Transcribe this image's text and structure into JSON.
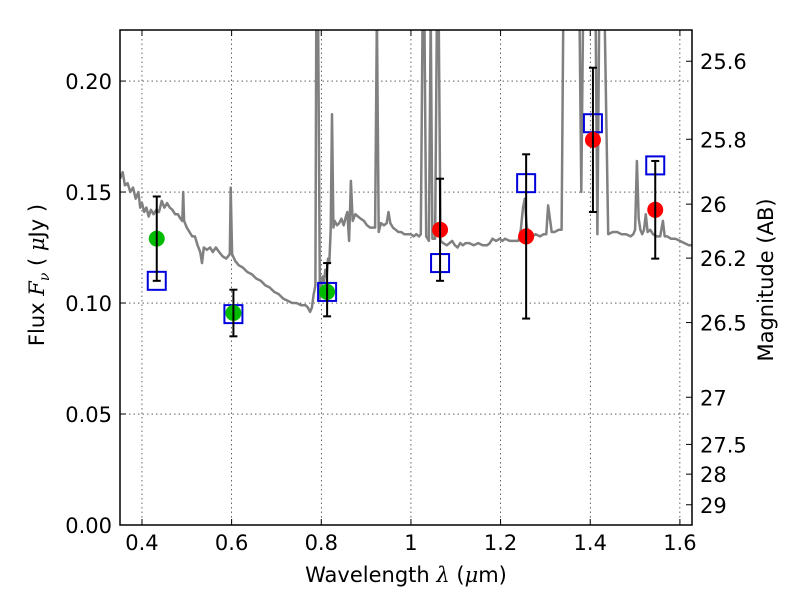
{
  "chart_data": {
    "type": "scatter",
    "title": "",
    "xlabel": "Wavelength  λ (μm)",
    "ylabel": "Flux  Fν  ( μJy )",
    "ylabel_right": "Magnitude (AB)",
    "xlim": [
      0.351,
      1.627
    ],
    "ylim": [
      0.0,
      0.223
    ],
    "grid": true,
    "x_ticks": [
      0.4,
      0.6,
      0.8,
      1.0,
      1.2,
      1.4,
      1.6
    ],
    "x_tick_labels": [
      "0.4",
      "0.6",
      "0.8",
      "1",
      "1.2",
      "1.4",
      "1.6"
    ],
    "y_ticks": [
      0.0,
      0.05,
      0.1,
      0.15,
      0.2
    ],
    "y_tick_labels": [
      "0.00",
      "0.05",
      "0.10",
      "0.15",
      "0.20"
    ],
    "right_axis": {
      "type": "AB magnitude",
      "zeropoint": 23.9,
      "ticks": [
        25.6,
        25.8,
        26,
        26.2,
        26.5,
        27,
        27.5,
        28,
        29
      ],
      "tick_labels": [
        "25.6",
        "25.8",
        "26",
        "26.2",
        "26.5",
        "27",
        "27.5",
        "28",
        "29"
      ]
    },
    "colors": {
      "spectrum": "#808080",
      "green_points": "#00bb00",
      "red_points": "#ff0000",
      "model_squares": "#0000dd",
      "errorbars": "#000000"
    },
    "observed": [
      {
        "x": 0.433,
        "y": 0.129,
        "yerr_low": 0.11,
        "yerr_high": 0.148,
        "color": "green"
      },
      {
        "x": 0.604,
        "y": 0.0955,
        "yerr_low": 0.085,
        "yerr_high": 0.106,
        "color": "green"
      },
      {
        "x": 0.813,
        "y": 0.105,
        "yerr_low": 0.094,
        "yerr_high": 0.118,
        "color": "green"
      },
      {
        "x": 1.065,
        "y": 0.133,
        "yerr_low": 0.11,
        "yerr_high": 0.156,
        "color": "red"
      },
      {
        "x": 1.257,
        "y": 0.13,
        "yerr_low": 0.093,
        "yerr_high": 0.167,
        "color": "red"
      },
      {
        "x": 1.406,
        "y": 0.1735,
        "yerr_low": 0.141,
        "yerr_high": 0.206,
        "color": "red"
      },
      {
        "x": 1.545,
        "y": 0.142,
        "yerr_low": 0.12,
        "yerr_high": 0.164,
        "color": "red"
      }
    ],
    "model_photometry": [
      {
        "x": 0.433,
        "y": 0.11
      },
      {
        "x": 0.604,
        "y": 0.095
      },
      {
        "x": 0.813,
        "y": 0.105
      },
      {
        "x": 1.065,
        "y": 0.118
      },
      {
        "x": 1.257,
        "y": 0.154
      },
      {
        "x": 1.406,
        "y": 0.181
      },
      {
        "x": 1.545,
        "y": 0.162
      }
    ],
    "spectrum": [
      [
        0.351,
        0.156
      ],
      [
        0.357,
        0.159
      ],
      [
        0.362,
        0.153
      ],
      [
        0.368,
        0.154
      ],
      [
        0.374,
        0.15
      ],
      [
        0.38,
        0.152
      ],
      [
        0.386,
        0.147
      ],
      [
        0.392,
        0.15
      ],
      [
        0.396,
        0.143
      ],
      [
        0.4,
        0.145
      ],
      [
        0.405,
        0.141
      ],
      [
        0.41,
        0.143
      ],
      [
        0.415,
        0.139
      ],
      [
        0.42,
        0.142
      ],
      [
        0.426,
        0.14
      ],
      [
        0.432,
        0.142
      ],
      [
        0.438,
        0.141
      ],
      [
        0.444,
        0.146
      ],
      [
        0.45,
        0.143
      ],
      [
        0.456,
        0.145
      ],
      [
        0.462,
        0.143
      ],
      [
        0.468,
        0.142
      ],
      [
        0.474,
        0.14
      ],
      [
        0.48,
        0.14
      ],
      [
        0.486,
        0.138
      ],
      [
        0.49,
        0.137
      ],
      [
        0.492,
        0.15
      ],
      [
        0.494,
        0.137
      ],
      [
        0.5,
        0.134
      ],
      [
        0.506,
        0.132
      ],
      [
        0.512,
        0.13
      ],
      [
        0.518,
        0.13
      ],
      [
        0.524,
        0.126
      ],
      [
        0.53,
        0.123
      ],
      [
        0.534,
        0.118
      ],
      [
        0.538,
        0.125
      ],
      [
        0.545,
        0.124
      ],
      [
        0.552,
        0.125
      ],
      [
        0.558,
        0.123
      ],
      [
        0.565,
        0.125
      ],
      [
        0.572,
        0.123
      ],
      [
        0.58,
        0.121
      ],
      [
        0.588,
        0.12
      ],
      [
        0.596,
        0.122
      ],
      [
        0.598,
        0.152
      ],
      [
        0.601,
        0.122
      ],
      [
        0.608,
        0.119
      ],
      [
        0.616,
        0.117
      ],
      [
        0.625,
        0.116
      ],
      [
        0.635,
        0.114
      ],
      [
        0.645,
        0.113
      ],
      [
        0.655,
        0.111
      ],
      [
        0.665,
        0.11
      ],
      [
        0.675,
        0.108
      ],
      [
        0.685,
        0.107
      ],
      [
        0.695,
        0.105
      ],
      [
        0.705,
        0.104
      ],
      [
        0.715,
        0.102
      ],
      [
        0.725,
        0.101
      ],
      [
        0.735,
        0.1
      ],
      [
        0.745,
        0.1
      ],
      [
        0.755,
        0.099
      ],
      [
        0.765,
        0.099
      ],
      [
        0.77,
        0.098
      ],
      [
        0.775,
        0.096
      ],
      [
        0.779,
        0.098
      ],
      [
        0.783,
        0.104
      ],
      [
        0.787,
        0.108
      ],
      [
        0.789,
        0.23
      ],
      [
        0.793,
        0.23
      ],
      [
        0.797,
        0.102
      ],
      [
        0.8,
        0.105
      ],
      [
        0.803,
        0.112
      ],
      [
        0.806,
        0.109
      ],
      [
        0.809,
        0.115
      ],
      [
        0.812,
        0.112
      ],
      [
        0.815,
        0.12
      ],
      [
        0.818,
        0.118
      ],
      [
        0.821,
        0.133
      ],
      [
        0.824,
        0.185
      ],
      [
        0.827,
        0.134
      ],
      [
        0.83,
        0.137
      ],
      [
        0.835,
        0.135
      ],
      [
        0.84,
        0.136
      ],
      [
        0.845,
        0.138
      ],
      [
        0.85,
        0.135
      ],
      [
        0.855,
        0.139
      ],
      [
        0.858,
        0.141
      ],
      [
        0.862,
        0.128
      ],
      [
        0.866,
        0.155
      ],
      [
        0.87,
        0.137
      ],
      [
        0.876,
        0.14
      ],
      [
        0.882,
        0.139
      ],
      [
        0.888,
        0.138
      ],
      [
        0.895,
        0.137
      ],
      [
        0.902,
        0.135
      ],
      [
        0.909,
        0.134
      ],
      [
        0.915,
        0.134
      ],
      [
        0.92,
        0.134
      ],
      [
        0.924,
        0.23
      ],
      [
        0.928,
        0.132
      ],
      [
        0.933,
        0.136
      ],
      [
        0.94,
        0.135
      ],
      [
        0.946,
        0.136
      ],
      [
        0.95,
        0.141
      ],
      [
        0.954,
        0.136
      ],
      [
        0.96,
        0.134
      ],
      [
        0.966,
        0.133
      ],
      [
        0.972,
        0.132
      ],
      [
        0.978,
        0.132
      ],
      [
        0.985,
        0.131
      ],
      [
        0.992,
        0.131
      ],
      [
        1.0,
        0.131
      ],
      [
        1.006,
        0.13
      ],
      [
        1.012,
        0.131
      ],
      [
        1.018,
        0.13
      ],
      [
        1.022,
        0.131
      ],
      [
        1.026,
        0.23
      ],
      [
        1.03,
        0.23
      ],
      [
        1.034,
        0.13
      ],
      [
        1.04,
        0.128
      ],
      [
        1.044,
        0.23
      ],
      [
        1.048,
        0.129
      ],
      [
        1.054,
        0.129
      ],
      [
        1.058,
        0.23
      ],
      [
        1.062,
        0.23
      ],
      [
        1.066,
        0.128
      ],
      [
        1.072,
        0.127
      ],
      [
        1.08,
        0.126
      ],
      [
        1.086,
        0.127
      ],
      [
        1.092,
        0.128
      ],
      [
        1.098,
        0.126
      ],
      [
        1.104,
        0.125
      ],
      [
        1.11,
        0.127
      ],
      [
        1.116,
        0.126
      ],
      [
        1.122,
        0.127
      ],
      [
        1.13,
        0.127
      ],
      [
        1.14,
        0.126
      ],
      [
        1.15,
        0.127
      ],
      [
        1.16,
        0.126
      ],
      [
        1.17,
        0.126
      ],
      [
        1.176,
        0.127
      ],
      [
        1.182,
        0.129
      ],
      [
        1.19,
        0.128
      ],
      [
        1.198,
        0.129
      ],
      [
        1.204,
        0.128
      ],
      [
        1.21,
        0.129
      ],
      [
        1.22,
        0.128
      ],
      [
        1.23,
        0.128
      ],
      [
        1.24,
        0.128
      ],
      [
        1.245,
        0.133
      ],
      [
        1.25,
        0.143
      ],
      [
        1.254,
        0.147
      ],
      [
        1.258,
        0.135
      ],
      [
        1.262,
        0.131
      ],
      [
        1.27,
        0.13
      ],
      [
        1.278,
        0.131
      ],
      [
        1.288,
        0.13
      ],
      [
        1.296,
        0.131
      ],
      [
        1.302,
        0.131
      ],
      [
        1.306,
        0.144
      ],
      [
        1.31,
        0.138
      ],
      [
        1.314,
        0.132
      ],
      [
        1.32,
        0.132
      ],
      [
        1.33,
        0.133
      ],
      [
        1.336,
        0.133
      ],
      [
        1.34,
        0.23
      ],
      [
        1.35,
        0.23
      ],
      [
        1.36,
        0.23
      ],
      [
        1.365,
        0.23
      ],
      [
        1.37,
        0.23
      ],
      [
        1.376,
        0.23
      ],
      [
        1.38,
        0.15
      ],
      [
        1.384,
        0.23
      ],
      [
        1.392,
        0.23
      ],
      [
        1.398,
        0.23
      ],
      [
        1.404,
        0.23
      ],
      [
        1.408,
        0.23
      ],
      [
        1.412,
        0.23
      ],
      [
        1.416,
        0.131
      ],
      [
        1.42,
        0.23
      ],
      [
        1.428,
        0.23
      ],
      [
        1.432,
        0.23
      ],
      [
        1.44,
        0.131
      ],
      [
        1.45,
        0.132
      ],
      [
        1.46,
        0.132
      ],
      [
        1.47,
        0.131
      ],
      [
        1.48,
        0.131
      ],
      [
        1.49,
        0.13
      ],
      [
        1.496,
        0.131
      ],
      [
        1.5,
        0.133
      ],
      [
        1.504,
        0.164
      ],
      [
        1.508,
        0.138
      ],
      [
        1.512,
        0.133
      ],
      [
        1.516,
        0.131
      ],
      [
        1.52,
        0.133
      ],
      [
        1.524,
        0.14
      ],
      [
        1.528,
        0.132
      ],
      [
        1.534,
        0.133
      ],
      [
        1.54,
        0.131
      ],
      [
        1.548,
        0.13
      ],
      [
        1.556,
        0.13
      ],
      [
        1.562,
        0.137
      ],
      [
        1.566,
        0.13
      ],
      [
        1.572,
        0.13
      ],
      [
        1.58,
        0.129
      ],
      [
        1.59,
        0.129
      ],
      [
        1.6,
        0.128
      ],
      [
        1.61,
        0.127
      ],
      [
        1.62,
        0.126
      ],
      [
        1.627,
        0.126
      ]
    ]
  }
}
